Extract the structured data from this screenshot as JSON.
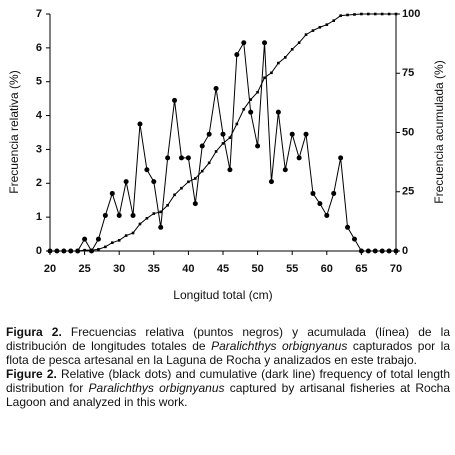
{
  "chart_data": {
    "type": "line",
    "x": [
      20,
      21,
      22,
      23,
      24,
      25,
      26,
      27,
      28,
      29,
      30,
      31,
      32,
      33,
      34,
      35,
      36,
      37,
      38,
      39,
      40,
      41,
      42,
      43,
      44,
      45,
      46,
      47,
      48,
      49,
      50,
      51,
      52,
      53,
      54,
      55,
      56,
      57,
      58,
      59,
      60,
      61,
      62,
      63,
      64,
      65,
      66,
      67,
      68,
      69,
      70
    ],
    "series": [
      {
        "name": "Frecuencia relativa",
        "color": "#000000",
        "marker": "circle",
        "values": [
          0,
          0,
          0,
          0,
          0,
          0.35,
          0,
          0.35,
          1.05,
          1.7,
          1.05,
          2.05,
          1.05,
          3.75,
          2.4,
          2.05,
          0.7,
          2.75,
          4.45,
          2.75,
          2.75,
          1.4,
          3.1,
          3.45,
          4.8,
          3.45,
          2.4,
          5.8,
          6.15,
          4.1,
          3.1,
          6.15,
          2.05,
          4.1,
          2.4,
          3.45,
          2.75,
          3.45,
          1.7,
          1.4,
          1.05,
          1.7,
          2.75,
          0.7,
          0.35,
          0,
          0,
          0,
          0,
          0,
          0
        ]
      },
      {
        "name": "Frecuencia acumulada",
        "color": "#000000",
        "marker": "square",
        "axis": "y2",
        "values": [
          0,
          0,
          0,
          0,
          0,
          0.35,
          0.35,
          0.7,
          1.75,
          3.5,
          4.5,
          6.5,
          7.6,
          11.4,
          13.8,
          15.8,
          16.5,
          19.3,
          23.7,
          26.5,
          29.2,
          30.6,
          33.7,
          37.2,
          42,
          45.4,
          47.8,
          53.6,
          59.8,
          63.9,
          67,
          73.1,
          75.2,
          79.3,
          81.7,
          85.1,
          87.9,
          91.3,
          93,
          94.4,
          95.5,
          97.2,
          99.3,
          99.6,
          99.8,
          100,
          100,
          100,
          100,
          100,
          100
        ]
      }
    ],
    "xlim": [
      20,
      70
    ],
    "xticks": [
      20,
      25,
      30,
      35,
      40,
      45,
      50,
      55,
      60,
      65,
      70
    ],
    "ylim": [
      0,
      7
    ],
    "yticks": [
      0,
      1,
      2,
      3,
      4,
      5,
      6,
      7
    ],
    "y2lim": [
      0,
      100
    ],
    "y2ticks": [
      0,
      25,
      50,
      75,
      100
    ],
    "xlabel": "Longitud total (cm)",
    "ylabel": "Frecuencia relativa (%)",
    "y2label": "Frecuencia acumulada (%)"
  },
  "caption": {
    "es": {
      "label": "Figura 2.",
      "text1": "Frecuencias relativa (puntos negros) y acumulada (línea) de la distribución de longitudes totales de",
      "species": "Paralichthys orbignyanus",
      "text2": "capturados por la flota de pesca artesanal en la Laguna de Rocha y analizados en este trabajo."
    },
    "en": {
      "label": "Figure 2.",
      "text1": "Relative (black dots) and cumulative (dark line) frequency of total length distribution for",
      "species": "Paralichthys orbignyanus",
      "text2": "captured by artisanal fisheries at Rocha Lagoon and analyzed in this work."
    }
  }
}
